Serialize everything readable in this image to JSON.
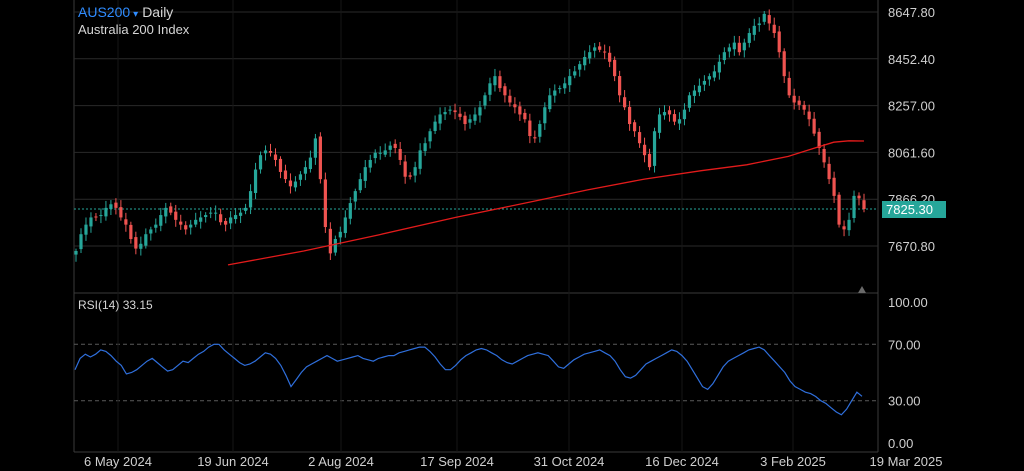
{
  "header": {
    "symbol": "AUS200",
    "caret": "▾",
    "interval": "Daily",
    "instrument_name": "Australia 200 Index"
  },
  "rsi_panel": {
    "title": "RSI(14)",
    "value": "33.15"
  },
  "price_badge": "7825.30",
  "colors": {
    "background": "#000000",
    "up_candle": "#26a69a",
    "down_candle": "#ef5350",
    "moving_average": "#e21b1b",
    "rsi_line": "#2f6fdc",
    "price_line": "#26a69a",
    "grid": "#2a2a2a"
  },
  "chart_data": [
    {
      "type": "candlestick",
      "title": "AUS200 Daily",
      "y_ticks": [
        "8647.80",
        "8452.40",
        "8257.00",
        "8061.60",
        "7866.20",
        "7670.80"
      ],
      "y_tick_values": [
        8647.8,
        8452.4,
        8257.0,
        8061.6,
        7866.2,
        7670.8
      ],
      "ylim": [
        7590,
        8665
      ],
      "x_ticks": [
        "6 May 2024",
        "19 Jun 2024",
        "2 Aug 2024",
        "17 Sep 2024",
        "31 Oct 2024",
        "16 Dec 2024",
        "3 Feb 2025",
        "19 Mar 2025"
      ],
      "current_price": 7825.3,
      "close_series": [
        7650,
        7720,
        7760,
        7790,
        7790,
        7800,
        7830,
        7845,
        7830,
        7790,
        7760,
        7700,
        7660,
        7680,
        7720,
        7740,
        7760,
        7800,
        7830,
        7810,
        7780,
        7760,
        7740,
        7760,
        7780,
        7790,
        7800,
        7810,
        7810,
        7770,
        7760,
        7790,
        7800,
        7810,
        7830,
        7900,
        7990,
        8050,
        8070,
        8060,
        8030,
        7980,
        7950,
        7920,
        7940,
        7970,
        8000,
        8040,
        8120,
        7950,
        7750,
        7640,
        7700,
        7730,
        7790,
        7850,
        7900,
        7950,
        8000,
        8030,
        8060,
        8060,
        8070,
        8090,
        8080,
        8030,
        7960,
        7960,
        8000,
        8070,
        8100,
        8150,
        8190,
        8220,
        8230,
        8240,
        8230,
        8210,
        8180,
        8200,
        8220,
        8250,
        8300,
        8350,
        8380,
        8330,
        8300,
        8270,
        8250,
        8220,
        8200,
        8130,
        8120,
        8180,
        8250,
        8300,
        8320,
        8330,
        8350,
        8380,
        8400,
        8430,
        8460,
        8480,
        8500,
        8490,
        8480,
        8440,
        8380,
        8300,
        8250,
        8180,
        8150,
        8100,
        8050,
        8000,
        8150,
        8220,
        8230,
        8220,
        8190,
        8200,
        8240,
        8300,
        8320,
        8340,
        8360,
        8380,
        8400,
        8440,
        8480,
        8500,
        8520,
        8480,
        8520,
        8560,
        8590,
        8600,
        8640,
        8600,
        8560,
        8480,
        8380,
        8300,
        8270,
        8260,
        8240,
        8200,
        8140,
        8080,
        8020,
        7950,
        7880,
        7760,
        7740,
        7780,
        7880,
        7870,
        7825.3
      ],
      "moving_average_series": [
        [
          0,
          7592
        ],
        [
          20,
          7650
        ],
        [
          40,
          7718
        ],
        [
          60,
          7790
        ],
        [
          80,
          7855
        ],
        [
          95,
          7905
        ],
        [
          110,
          7950
        ],
        [
          125,
          7985
        ],
        [
          137,
          8010
        ],
        [
          148,
          8045
        ],
        [
          155,
          8080
        ],
        [
          160,
          8104
        ],
        [
          164,
          8110
        ],
        [
          168,
          8109
        ]
      ]
    },
    {
      "type": "line",
      "title": "RSI(14)",
      "y_ticks": [
        "100.00",
        "70.00",
        "30.00",
        "0.00"
      ],
      "y_tick_values": [
        100,
        70,
        30,
        0
      ],
      "ylim": [
        0,
        100
      ],
      "reference_lines": [
        70,
        30
      ],
      "last_value": 33.15,
      "values": [
        52,
        60,
        63,
        61,
        63,
        66,
        65,
        62,
        58,
        55,
        49,
        50,
        52,
        55,
        58,
        60,
        57,
        54,
        51,
        52,
        55,
        58,
        57,
        60,
        63,
        65,
        68,
        70,
        70,
        66,
        63,
        60,
        57,
        55,
        56,
        58,
        61,
        64,
        63,
        60,
        55,
        48,
        40,
        45,
        50,
        54,
        56,
        58,
        60,
        62,
        60,
        58,
        59,
        60,
        61,
        62,
        60,
        59,
        58,
        60,
        61,
        62,
        62,
        64,
        65,
        66,
        67,
        68,
        68,
        65,
        61,
        56,
        52,
        52,
        55,
        59,
        62,
        64,
        66,
        67,
        66,
        64,
        62,
        59,
        57,
        56,
        58,
        60,
        62,
        63,
        64,
        63,
        62,
        58,
        54,
        53,
        56,
        59,
        61,
        63,
        64,
        65,
        66,
        64,
        62,
        58,
        52,
        47,
        46,
        48,
        52,
        56,
        58,
        60,
        62,
        64,
        66,
        65,
        62,
        58,
        52,
        46,
        40,
        38,
        42,
        48,
        54,
        58,
        60,
        62,
        64,
        66,
        67,
        68,
        66,
        62,
        58,
        54,
        50,
        44,
        40,
        38,
        36,
        35,
        33,
        30,
        28,
        25,
        22,
        20,
        24,
        30,
        36,
        33.15
      ]
    }
  ]
}
